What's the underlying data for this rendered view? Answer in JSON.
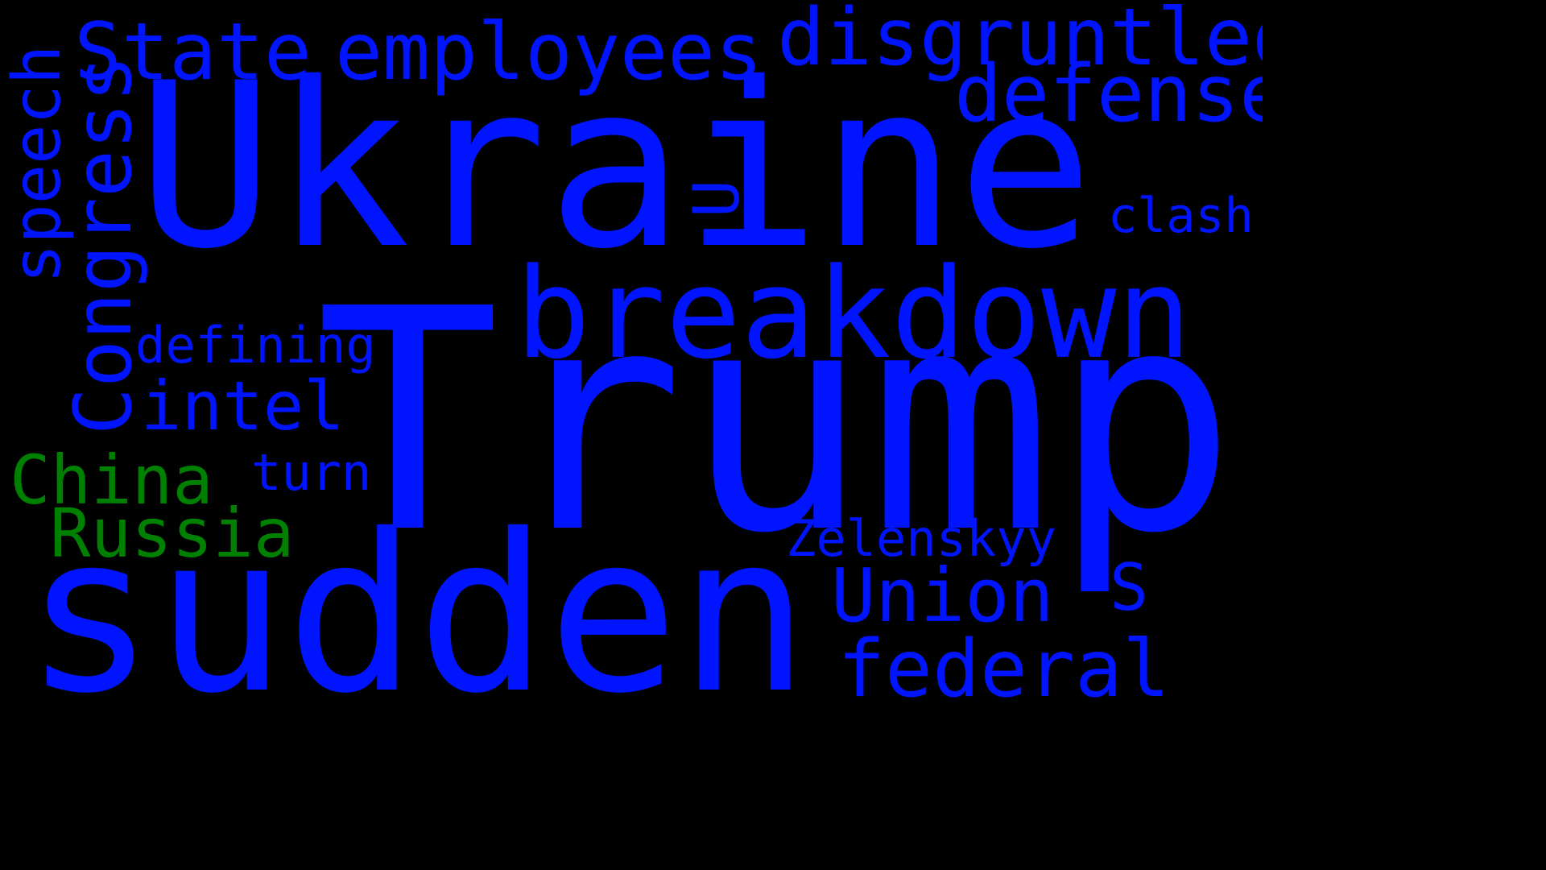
{
  "colors": {
    "background": "#000000",
    "blue": "#0014ff",
    "green": "#008000"
  },
  "words": {
    "ukraine": "Ukraine",
    "trump": "Trump",
    "sudden": "sudden",
    "breakdown": "breakdown",
    "state": "State",
    "employees": "employees",
    "disgruntled": "disgruntled",
    "defense": "defense",
    "speech": "speech",
    "congress": "Congress",
    "u": "U",
    "clash": "clash",
    "defining": "defining",
    "intel": "intel",
    "china": "China",
    "turn": "turn",
    "russia": "Russia",
    "zelenskyy": "Zelenskyy",
    "union": "Union",
    "s": "S",
    "federal": "federal"
  }
}
